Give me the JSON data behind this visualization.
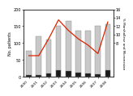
{
  "years": [
    2000,
    2001,
    2002,
    2003,
    2004,
    2005,
    2006,
    2007,
    2008
  ],
  "total_us": [
    76,
    120,
    110,
    150,
    166,
    137,
    137,
    150,
    155
  ],
  "marshallese": [
    4,
    6,
    10,
    20,
    18,
    12,
    10,
    8,
    20
  ],
  "percentage": [
    5.0,
    5.0,
    9.0,
    13.5,
    11.0,
    9.0,
    7.5,
    5.5,
    13.0
  ],
  "bar_color_white": "#c8c8c8",
  "bar_color_black": "#1a1a1a",
  "bar_edge_color": "#888888",
  "line_color": "#dd2200",
  "ylim_left": [
    0,
    200
  ],
  "ylim_right": [
    0,
    16
  ],
  "yticks_left": [
    0,
    50,
    100,
    150,
    200
  ],
  "yticks_right": [
    8,
    10,
    12,
    14,
    16
  ],
  "ytick_labels_right": [
    "8",
    "10",
    "12",
    "14",
    "16"
  ],
  "ylabel_left": "No. patients",
  "ylabel_right": "% Marshallese and Micronesian",
  "background": "#ffffff"
}
